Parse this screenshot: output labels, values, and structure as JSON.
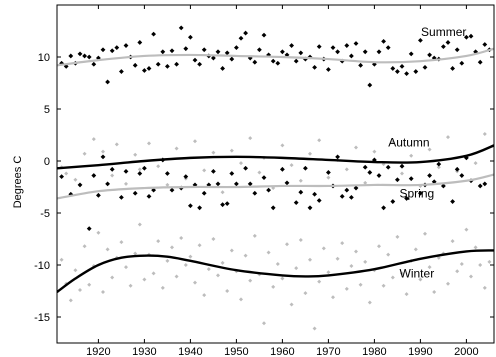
{
  "chart_data": {
    "type": "scatter",
    "title": "",
    "xlabel": "",
    "ylabel": "Degrees C",
    "xlim": [
      1911,
      2006
    ],
    "ylim": [
      -17.5,
      15
    ],
    "x_ticks": [
      1920,
      1930,
      1940,
      1950,
      1960,
      1970,
      1980,
      1990,
      2000
    ],
    "y_ticks": [
      -15,
      -10,
      -5,
      0,
      5,
      10
    ],
    "grid": false,
    "legend": "none",
    "colors": {
      "dark": "#000000",
      "light": "#bdbdbd",
      "axis": "#000000"
    },
    "series": [
      {
        "name": "Summer",
        "color": "#000000",
        "trend_color": "#bdbdbd",
        "trend": {
          "x": [
            1911,
            1920,
            1930,
            1940,
            1950,
            1960,
            1970,
            1980,
            1990,
            2000,
            2006
          ],
          "y": [
            9.2,
            9.7,
            10.1,
            10.2,
            10.1,
            10.0,
            9.8,
            9.5,
            9.6,
            10.1,
            10.8
          ]
        },
        "x": [
          1912,
          1913,
          1914,
          1915,
          1916,
          1917,
          1918,
          1919,
          1920,
          1921,
          1922,
          1923,
          1924,
          1925,
          1926,
          1927,
          1928,
          1929,
          1930,
          1931,
          1932,
          1933,
          1934,
          1935,
          1936,
          1937,
          1938,
          1939,
          1940,
          1941,
          1942,
          1943,
          1944,
          1945,
          1946,
          1947,
          1948,
          1949,
          1950,
          1951,
          1952,
          1953,
          1954,
          1955,
          1956,
          1957,
          1958,
          1959,
          1960,
          1961,
          1962,
          1963,
          1964,
          1965,
          1966,
          1967,
          1968,
          1969,
          1970,
          1971,
          1972,
          1973,
          1974,
          1975,
          1976,
          1977,
          1978,
          1979,
          1980,
          1981,
          1982,
          1983,
          1984,
          1985,
          1986,
          1987,
          1988,
          1989,
          1990,
          1991,
          1992,
          1993,
          1994,
          1995,
          1996,
          1997,
          1998,
          1999,
          2000,
          2001,
          2002,
          2003,
          2004,
          2005
        ],
        "y": [
          9.4,
          9.1,
          10.1,
          9.4,
          10.3,
          10.1,
          10.0,
          9.3,
          9.9,
          10.7,
          7.6,
          10.6,
          10.9,
          8.6,
          11.1,
          10.0,
          9.2,
          11.4,
          8.7,
          8.9,
          12.2,
          9.3,
          10.5,
          9.1,
          10.6,
          9.3,
          12.8,
          10.8,
          11.9,
          9.7,
          9.3,
          10.7,
          10.1,
          9.9,
          10.5,
          8.9,
          10.4,
          9.8,
          10.9,
          11.8,
          12.3,
          9.9,
          9.5,
          10.7,
          12.1,
          10.2,
          9.6,
          9.4,
          10.5,
          10.2,
          11.1,
          9.6,
          10.4,
          9.8,
          10.0,
          9.0,
          11.0,
          9.8,
          8.8,
          10.9,
          10.5,
          9.6,
          11.1,
          10.1,
          11.3,
          9.2,
          10.5,
          7.3,
          9.3,
          10.5,
          11.5,
          10.9,
          8.9,
          8.6,
          9.1,
          8.4,
          10.3,
          8.6,
          11.6,
          9.0,
          10.2,
          9.9,
          9.8,
          11.0,
          11.4,
          8.9,
          10.7,
          9.4,
          11.9,
          12.0,
          10.5,
          9.5,
          11.2,
          10.7
        ]
      },
      {
        "name": "Autumn",
        "color": "#000000",
        "trend_color": "#000000",
        "trend": {
          "x": [
            1911,
            1920,
            1930,
            1940,
            1950,
            1960,
            1970,
            1980,
            1990,
            2000,
            2006
          ],
          "y": [
            -0.7,
            -0.4,
            0.0,
            0.3,
            0.4,
            0.3,
            0.1,
            -0.1,
            -0.1,
            0.5,
            1.5
          ]
        },
        "x": [
          1912,
          1914,
          1916,
          1918,
          1919,
          1920,
          1921,
          1922,
          1923,
          1925,
          1926,
          1928,
          1929,
          1930,
          1931,
          1932,
          1934,
          1935,
          1936,
          1938,
          1939,
          1940,
          1941,
          1942,
          1943,
          1944,
          1945,
          1946,
          1947,
          1948,
          1949,
          1950,
          1952,
          1953,
          1954,
          1956,
          1957,
          1958,
          1960,
          1961,
          1963,
          1964,
          1965,
          1966,
          1967,
          1968,
          1970,
          1971,
          1972,
          1973,
          1974,
          1975,
          1976,
          1978,
          1979,
          1980,
          1981,
          1982,
          1983,
          1984,
          1985,
          1986,
          1987,
          1988,
          1990,
          1991,
          1992,
          1993,
          1994,
          1995,
          1997,
          1998,
          1999,
          2000,
          2001,
          2003,
          2004
        ],
        "y": [
          -1.5,
          -3.2,
          -2.3,
          -6.5,
          -1.4,
          -3.3,
          0.4,
          -2.2,
          -0.8,
          -3.5,
          -1.0,
          -3.1,
          -1.2,
          -0.7,
          -3.4,
          -2.8,
          0.1,
          -1.2,
          -2.8,
          -2.6,
          -1.5,
          -4.3,
          -2.3,
          -4.5,
          -3.1,
          -2.3,
          -1.0,
          -2.2,
          -4.2,
          -4.1,
          -1.2,
          -2.2,
          -0.7,
          -2.2,
          -3.1,
          -1.6,
          -2.8,
          -4.5,
          -0.8,
          -2.1,
          -4.0,
          -3.0,
          -0.7,
          -4.5,
          -3.2,
          -3.8,
          -1.1,
          -2.4,
          0.4,
          -3.4,
          -2.8,
          -3.5,
          -2.6,
          -0.6,
          -1.1,
          0.1,
          -1.4,
          -4.5,
          -0.6,
          -3.9,
          -1.8,
          -0.5,
          -3.6,
          -1.7,
          -3.1,
          -2.3,
          -1.4,
          -2.0,
          -0.3,
          -2.4,
          -3.9,
          -0.8,
          -1.4,
          0.3,
          -1.9,
          -2.4,
          -2.2
        ]
      },
      {
        "name": "Spring",
        "color": "#bdbdbd",
        "trend_color": "#bdbdbd",
        "trend": {
          "x": [
            1911,
            1920,
            1930,
            1940,
            1950,
            1960,
            1970,
            1980,
            1990,
            2000,
            2006
          ],
          "y": [
            -3.6,
            -2.9,
            -2.6,
            -2.5,
            -2.5,
            -2.4,
            -2.4,
            -2.3,
            -2.3,
            -1.9,
            -1.3
          ]
        },
        "x": [
          1912,
          1913,
          1915,
          1917,
          1919,
          1921,
          1923,
          1924,
          1926,
          1928,
          1929,
          1931,
          1933,
          1935,
          1937,
          1939,
          1941,
          1943,
          1945,
          1947,
          1949,
          1951,
          1953,
          1955,
          1956,
          1958,
          1960,
          1962,
          1964,
          1966,
          1968,
          1970,
          1972,
          1974,
          1976,
          1978,
          1980,
          1982,
          1984,
          1986,
          1988,
          1990,
          1992,
          1994,
          1996,
          1998,
          2000,
          2002,
          2004
        ],
        "y": [
          -0.6,
          -1.2,
          -1.8,
          0.7,
          2.1,
          0.9,
          -1.4,
          1.6,
          -2.2,
          0.6,
          -0.8,
          1.7,
          -0.5,
          -2.3,
          1.2,
          -1.7,
          1.9,
          -0.9,
          0.8,
          -3.0,
          1.0,
          -0.2,
          2.2,
          -1.1,
          0.3,
          -2.6,
          1.5,
          -0.4,
          -1.9,
          0.7,
          2.0,
          -1.6,
          0.1,
          -0.8,
          1.3,
          -2.1,
          0.9,
          -0.3,
          1.8,
          -1.2,
          0.5,
          -2.4,
          1.1,
          -0.6,
          2.3,
          -1.0,
          0.4,
          -0.2,
          2.6
        ]
      },
      {
        "name": "Winter",
        "color": "#bdbdbd",
        "trend_color": "#000000",
        "trend": {
          "x": [
            1911,
            1915,
            1920,
            1925,
            1930,
            1935,
            1940,
            1950,
            1960,
            1965,
            1970,
            1980,
            1990,
            2000,
            2006
          ],
          "y": [
            -12.6,
            -11.3,
            -10.0,
            -9.3,
            -9.1,
            -9.2,
            -9.6,
            -10.5,
            -11.0,
            -11.1,
            -11.0,
            -10.4,
            -9.4,
            -8.7,
            -8.6
          ]
        },
        "x": [
          1912,
          1913,
          1914,
          1915,
          1916,
          1917,
          1918,
          1919,
          1920,
          1921,
          1922,
          1923,
          1924,
          1925,
          1926,
          1927,
          1928,
          1929,
          1930,
          1931,
          1932,
          1933,
          1934,
          1935,
          1936,
          1937,
          1938,
          1939,
          1940,
          1941,
          1942,
          1943,
          1944,
          1945,
          1946,
          1947,
          1948,
          1949,
          1950,
          1951,
          1952,
          1953,
          1954,
          1955,
          1956,
          1957,
          1958,
          1959,
          1960,
          1961,
          1962,
          1963,
          1964,
          1965,
          1966,
          1967,
          1968,
          1969,
          1970,
          1971,
          1972,
          1973,
          1974,
          1975,
          1976,
          1977,
          1978,
          1979,
          1980,
          1981,
          1982,
          1983,
          1984,
          1985,
          1986,
          1987,
          1988,
          1989,
          1990,
          1991,
          1992,
          1993,
          1994,
          1995,
          1996,
          1997,
          1998,
          1999,
          2000,
          2001,
          2002,
          2003,
          2004,
          2005
        ],
        "y": [
          -9.5,
          -11.8,
          -13.4,
          -10.5,
          -12.4,
          -8.2,
          -11.9,
          -10.1,
          -6.9,
          -12.6,
          -8.5,
          -11.2,
          -9.3,
          -7.8,
          -10.2,
          -12.0,
          -8.9,
          -6.1,
          -11.4,
          -9.0,
          -10.8,
          -7.7,
          -12.2,
          -9.6,
          -8.3,
          -11.1,
          -7.4,
          -10.0,
          -9.2,
          -11.7,
          -8.1,
          -12.9,
          -10.4,
          -7.5,
          -11.0,
          -9.8,
          -12.5,
          -8.6,
          -10.6,
          -13.3,
          -9.1,
          -11.5,
          -7.2,
          -10.9,
          -15.6,
          -8.8,
          -12.1,
          -9.9,
          -11.3,
          -8.0,
          -13.8,
          -10.3,
          -7.6,
          -12.7,
          -9.5,
          -16.1,
          -11.6,
          -8.4,
          -10.7,
          -13.1,
          -9.4,
          -7.9,
          -12.3,
          -10.1,
          -8.7,
          -11.9,
          -9.7,
          -13.6,
          -10.5,
          -8.2,
          -12.0,
          -9.0,
          -11.2,
          -7.3,
          -10.8,
          -12.8,
          -9.6,
          -8.5,
          -11.4,
          -7.0,
          -10.2,
          -12.6,
          -9.3,
          -8.9,
          -11.8,
          -7.7,
          -10.6,
          -9.9,
          -6.6,
          -11.1,
          -8.3,
          -10.0,
          -12.2,
          -9.7
        ],
        "marker_style": "light"
      }
    ]
  }
}
